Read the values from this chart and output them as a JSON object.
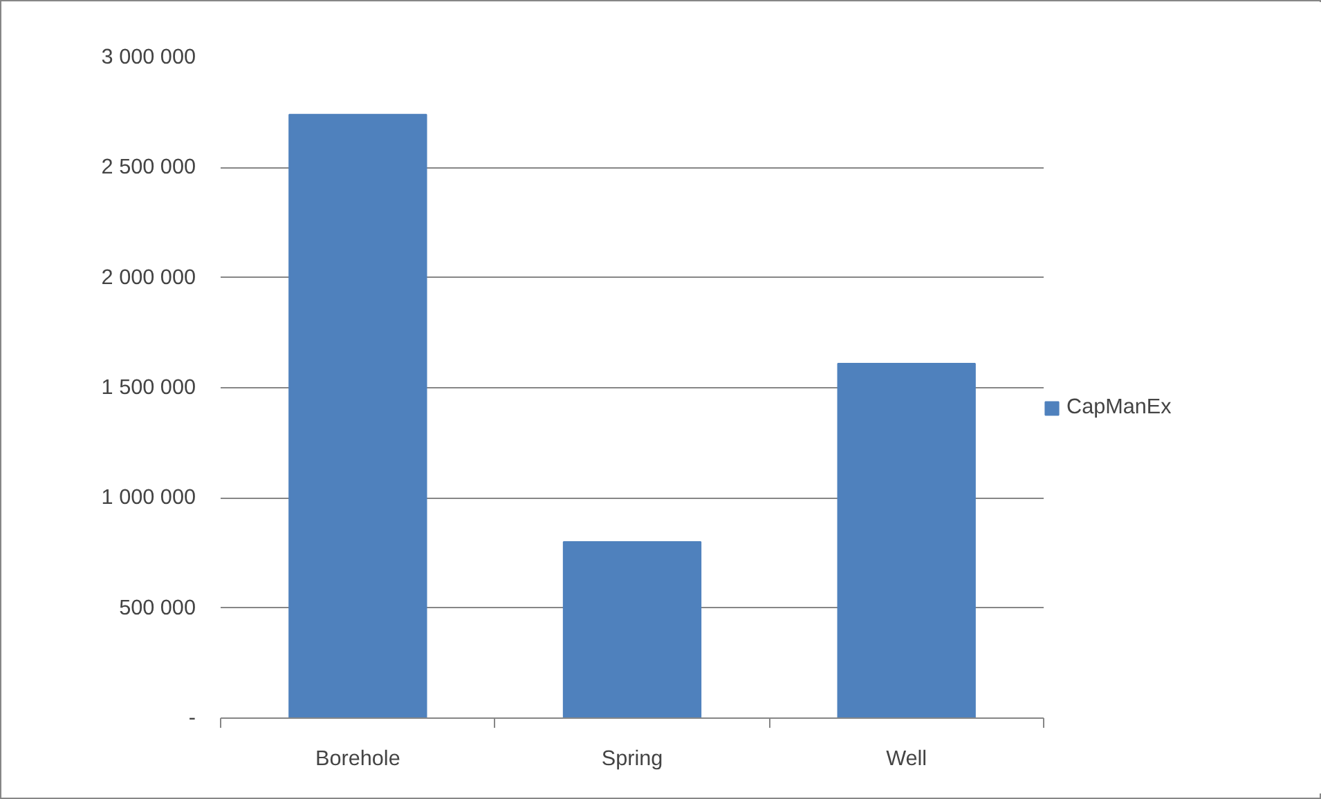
{
  "chart_data": {
    "type": "bar",
    "categories": [
      "Borehole",
      "Spring",
      "Well"
    ],
    "series": [
      {
        "name": "CapManEx",
        "color": "#4f81bd",
        "values": [
          2740000,
          800000,
          1610000
        ]
      }
    ],
    "ylim": [
      0,
      3000000
    ],
    "yticks": [
      {
        "value": 0,
        "label": "-"
      },
      {
        "value": 500000,
        "label": "500 000"
      },
      {
        "value": 1000000,
        "label": "1 000 000"
      },
      {
        "value": 1500000,
        "label": "1 500 000"
      },
      {
        "value": 2000000,
        "label": "2 000 000"
      },
      {
        "value": 2500000,
        "label": "2 500 000"
      },
      {
        "value": 3000000,
        "label": "3 000 000"
      }
    ],
    "grid": "y",
    "legend": "right"
  }
}
